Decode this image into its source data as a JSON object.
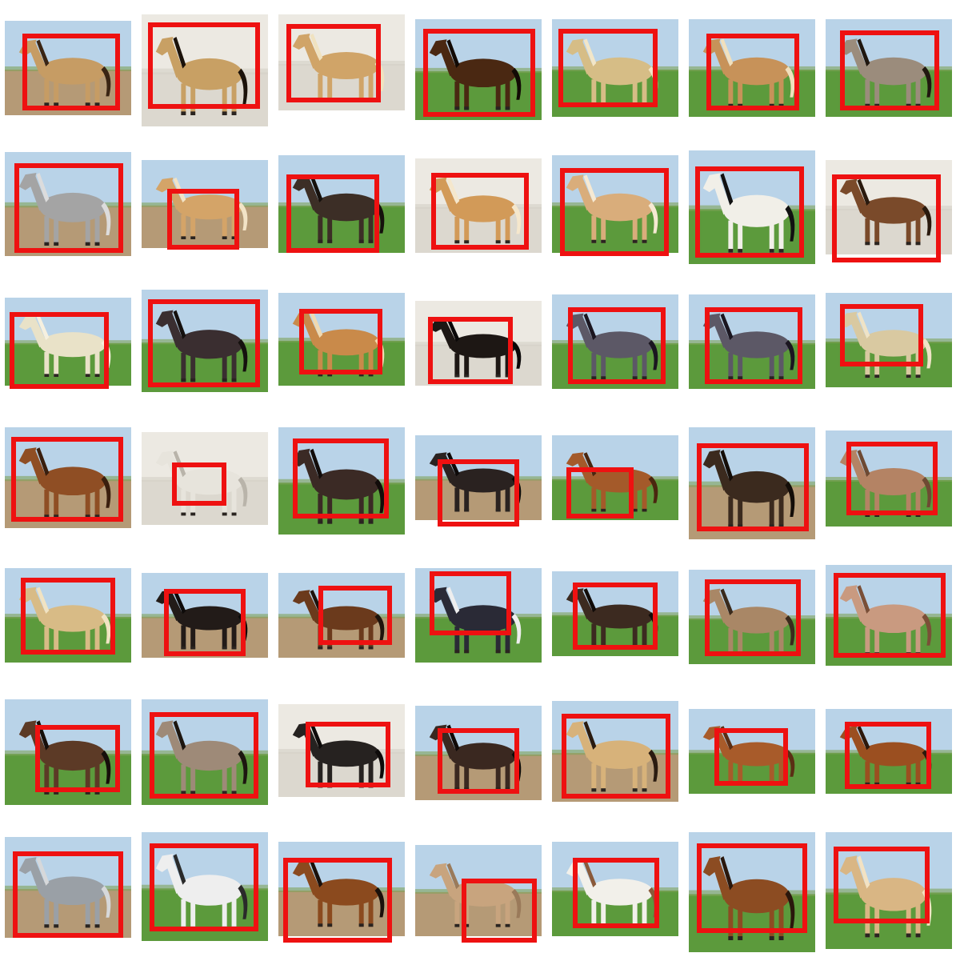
{
  "colors": {
    "background": "#ffffff",
    "box": "#ee1111",
    "grass": "#5c9a3c",
    "dirt": "#b59a76",
    "sky": "#b9d3e8",
    "studio": "#ece9e2"
  },
  "grid": {
    "rows": 7,
    "cols": 7
  },
  "tiles": [
    {
      "bg": "dirt",
      "coat": "#c69c64",
      "mane": "#3a2514"
    },
    {
      "bg": "studio",
      "coat": "#c8a064",
      "mane": "#1b120a"
    },
    {
      "bg": "studio",
      "coat": "#d0a468",
      "mane": "#f0e2c0"
    },
    {
      "bg": "grass",
      "coat": "#4a2812",
      "mane": "#120a05"
    },
    {
      "bg": "grass",
      "coat": "#d6bd86",
      "mane": "#f2e6c8"
    },
    {
      "bg": "grass",
      "coat": "#c79259",
      "mane": "#f1e0bd"
    },
    {
      "bg": "grass",
      "coat": "#9b8c7c",
      "mane": "#20170f"
    },
    {
      "bg": "dirt",
      "coat": "#a4a4a4",
      "mane": "#dcdcdc"
    },
    {
      "bg": "dirt",
      "coat": "#d4a468",
      "mane": "#f2e3c6"
    },
    {
      "bg": "grass",
      "coat": "#3c2e26",
      "mane": "#15100c"
    },
    {
      "bg": "studio",
      "coat": "#d29a58",
      "mane": "#f5e7cc"
    },
    {
      "bg": "grass",
      "coat": "#d9ad7b",
      "mane": "#f6e9d2"
    },
    {
      "bg": "grass",
      "coat": "#f1efe8",
      "mane": "#111111"
    },
    {
      "bg": "studio",
      "coat": "#7a4a2a",
      "mane": "#2a1a0e"
    },
    {
      "bg": "grass",
      "coat": "#e9e2c8",
      "mane": "#f6f0df"
    },
    {
      "bg": "grass",
      "coat": "#3a2e30",
      "mane": "#15100e"
    },
    {
      "bg": "grass",
      "coat": "#c98a4a",
      "mane": "#f0d9b0"
    },
    {
      "bg": "studio",
      "coat": "#1d1714",
      "mane": "#0a0808"
    },
    {
      "bg": "grass",
      "coat": "#5c5866",
      "mane": "#1b1620"
    },
    {
      "bg": "grass",
      "coat": "#5c5866",
      "mane": "#1b1620"
    },
    {
      "bg": "grass",
      "coat": "#d9c9a1",
      "mane": "#efe3c6"
    },
    {
      "bg": "dirt",
      "coat": "#8f4e24",
      "mane": "#3a1f0e"
    },
    {
      "bg": "studio",
      "coat": "#e7e4dc",
      "mane": "#b9b4aa"
    },
    {
      "bg": "grass",
      "coat": "#3b2a25",
      "mane": "#120c0a"
    },
    {
      "bg": "dirt",
      "coat": "#2a2220",
      "mane": "#0e0a09"
    },
    {
      "bg": "grass",
      "coat": "#a45a2a",
      "mane": "#4a260f"
    },
    {
      "bg": "dirt",
      "coat": "#3b2a1e",
      "mane": "#140d08"
    },
    {
      "bg": "grass",
      "coat": "#b48364",
      "mane": "#6e4a33"
    },
    {
      "bg": "grass",
      "coat": "#d8bb86",
      "mane": "#f1e3c2"
    },
    {
      "bg": "dirt",
      "coat": "#221b18",
      "mane": "#0d0a09"
    },
    {
      "bg": "dirt",
      "coat": "#6b3a1c",
      "mane": "#1e130b"
    },
    {
      "bg": "grass",
      "coat": "#2a2a36",
      "mane": "#eeeeee"
    },
    {
      "bg": "grass",
      "coat": "#3c2a20",
      "mane": "#110b08"
    },
    {
      "bg": "grass",
      "coat": "#a98766",
      "mane": "#3a2a1c"
    },
    {
      "bg": "grass",
      "coat": "#c99a80",
      "mane": "#7a4f37"
    },
    {
      "bg": "grass",
      "coat": "#5c3a26",
      "mane": "#160f0a"
    },
    {
      "bg": "grass",
      "coat": "#9e8a78",
      "mane": "#1d1610"
    },
    {
      "bg": "studio",
      "coat": "#262220",
      "mane": "#0e0b0a"
    },
    {
      "bg": "dirt",
      "coat": "#3a2820",
      "mane": "#100a08"
    },
    {
      "bg": "dirt",
      "coat": "#d7b27a",
      "mane": "#2a1b10"
    },
    {
      "bg": "grass",
      "coat": "#a85b2a",
      "mane": "#5a2e14"
    },
    {
      "bg": "grass",
      "coat": "#9b4f20",
      "mane": "#2d180b"
    },
    {
      "bg": "dirt",
      "coat": "#9aa0a6",
      "mane": "#d6d8da"
    },
    {
      "bg": "grass",
      "coat": "#eeeeee",
      "mane": "#2a2a2a"
    },
    {
      "bg": "dirt",
      "coat": "#8b4a1e",
      "mane": "#1a100a"
    },
    {
      "bg": "dirt",
      "coat": "#c8a47e",
      "mane": "#9a7a5a"
    },
    {
      "bg": "grass",
      "coat": "#f2f0ea",
      "mane": "#8a5a3a"
    },
    {
      "bg": "grass",
      "coat": "#8c4c22",
      "mane": "#2a170c"
    },
    {
      "bg": "grass",
      "coat": "#d9b684",
      "mane": "#f3e2c2"
    }
  ]
}
